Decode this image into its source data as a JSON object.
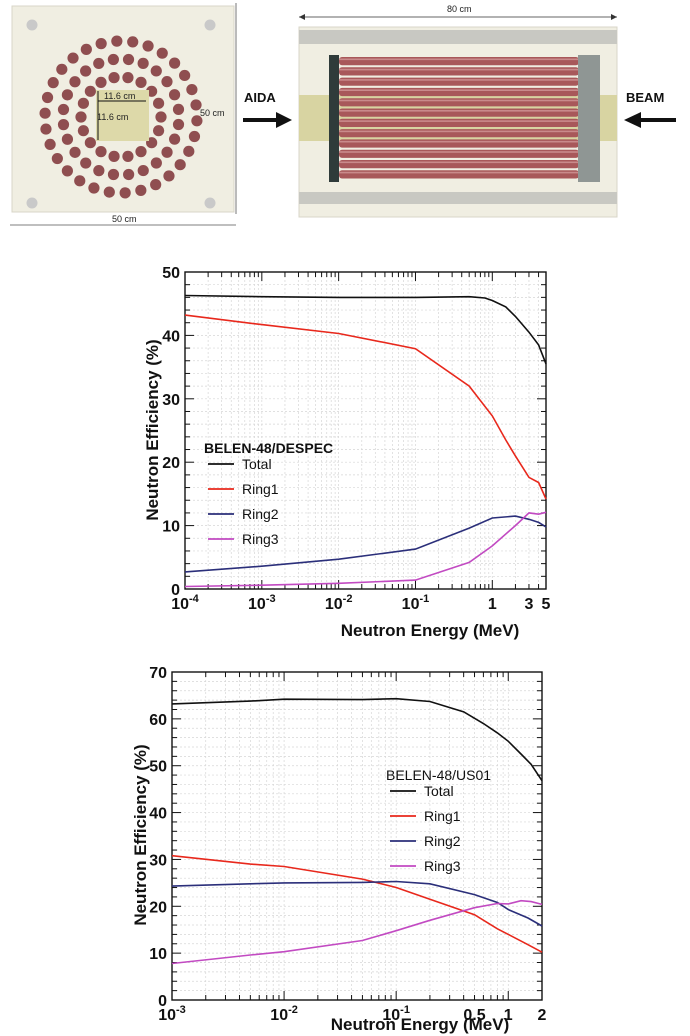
{
  "top_panel": {
    "left_square": {
      "inner_width": "11.6 cm",
      "inner_height": "11.6 cm",
      "outer_side": "50 cm",
      "outer_bottom": "50 cm"
    },
    "right_side": {
      "length": "80 cm",
      "left_arrow_label": "AIDA",
      "right_arrow_label": "BEAM"
    }
  },
  "chart_data": [
    {
      "type": "line",
      "xscale": "log",
      "xlim": [
        0.0001,
        5
      ],
      "ylim": [
        0,
        50
      ],
      "xlabel": "Neutron Energy (MeV)",
      "ylabel": "Neutron Efficiency (%)",
      "yticks": [
        0,
        10,
        20,
        30,
        40,
        50
      ],
      "xticks": [
        {
          "v": 0.0001,
          "base": "10",
          "exp": "-4"
        },
        {
          "v": 0.001,
          "base": "10",
          "exp": "-3"
        },
        {
          "v": 0.01,
          "base": "10",
          "exp": "-2"
        },
        {
          "v": 0.1,
          "base": "10",
          "exp": "-1"
        },
        {
          "v": 1,
          "base": "1",
          "exp": ""
        },
        {
          "v": 3,
          "base": "3",
          "exp": ""
        },
        {
          "v": 5,
          "base": "5",
          "exp": ""
        }
      ],
      "grid": true,
      "legend_title": "BELEN-48/DESPEC",
      "legend_position": "center-left",
      "series": [
        {
          "name": "Total",
          "color": "#111111",
          "x": [
            0.0001,
            0.001,
            0.01,
            0.1,
            0.5,
            0.8,
            1,
            1.5,
            2,
            3,
            4,
            5
          ],
          "y": [
            46.3,
            46.1,
            46.0,
            46.0,
            46.1,
            45.9,
            45.5,
            44.5,
            43.0,
            40.5,
            38.5,
            35.5
          ]
        },
        {
          "name": "Ring1",
          "color": "#e8281c",
          "x": [
            0.0001,
            0.001,
            0.01,
            0.1,
            0.5,
            1,
            1.5,
            2,
            3,
            4,
            5
          ],
          "y": [
            43.2,
            41.7,
            40.3,
            37.9,
            32.0,
            27.3,
            23.5,
            21.0,
            17.6,
            16.8,
            14.2
          ]
        },
        {
          "name": "Ring2",
          "color": "#2b2f7a",
          "x": [
            0.0001,
            0.001,
            0.01,
            0.1,
            0.5,
            1,
            2,
            3,
            4,
            5
          ],
          "y": [
            2.7,
            3.6,
            4.7,
            6.3,
            9.6,
            11.2,
            11.5,
            11.0,
            10.5,
            9.8
          ]
        },
        {
          "name": "Ring3",
          "color": "#c24ac2",
          "x": [
            0.0001,
            0.001,
            0.01,
            0.1,
            0.5,
            1,
            2,
            3,
            4,
            5
          ],
          "y": [
            0.4,
            0.6,
            0.9,
            1.4,
            4.2,
            6.8,
            10.0,
            12.0,
            11.8,
            12.1
          ]
        }
      ]
    },
    {
      "type": "line",
      "xscale": "log",
      "xlim": [
        0.001,
        2
      ],
      "ylim": [
        0,
        70
      ],
      "xlabel": "Neutron Energy (MeV)",
      "ylabel": "Neutron Efficiency (%)",
      "yticks": [
        0,
        10,
        20,
        30,
        40,
        50,
        60,
        70
      ],
      "xticks": [
        {
          "v": 0.001,
          "base": "10",
          "exp": "-3"
        },
        {
          "v": 0.01,
          "base": "10",
          "exp": "-2"
        },
        {
          "v": 0.1,
          "base": "10",
          "exp": "-1"
        },
        {
          "v": 0.5,
          "base": "0.5",
          "exp": ""
        },
        {
          "v": 1,
          "base": "1",
          "exp": ""
        },
        {
          "v": 2,
          "base": "2",
          "exp": ""
        }
      ],
      "grid": true,
      "legend_title": "BELEN-48/US01",
      "legend_position": "right",
      "series": [
        {
          "name": "Total",
          "color": "#111111",
          "x": [
            0.001,
            0.005,
            0.01,
            0.05,
            0.1,
            0.2,
            0.4,
            0.6,
            0.8,
            1,
            1.3,
            1.6,
            2
          ],
          "y": [
            63.2,
            63.8,
            64.2,
            64.1,
            64.3,
            63.7,
            61.5,
            59.0,
            57.0,
            55.2,
            52.5,
            50.3,
            46.8
          ]
        },
        {
          "name": "Ring1",
          "color": "#e8281c",
          "x": [
            0.001,
            0.005,
            0.01,
            0.05,
            0.1,
            0.2,
            0.5,
            0.8,
            1,
            1.5,
            2
          ],
          "y": [
            30.8,
            29.0,
            28.5,
            25.8,
            24.0,
            21.5,
            18.2,
            15.2,
            14.0,
            11.8,
            10.2
          ]
        },
        {
          "name": "Ring2",
          "color": "#2b2f7a",
          "x": [
            0.001,
            0.005,
            0.01,
            0.05,
            0.1,
            0.2,
            0.5,
            0.8,
            1,
            1.5,
            2
          ],
          "y": [
            24.3,
            24.8,
            25.0,
            25.1,
            25.3,
            24.8,
            22.5,
            20.8,
            19.3,
            17.5,
            15.8
          ]
        },
        {
          "name": "Ring3",
          "color": "#c24ac2",
          "x": [
            0.001,
            0.005,
            0.01,
            0.05,
            0.1,
            0.2,
            0.5,
            0.8,
            1,
            1.3,
            1.6,
            2
          ],
          "y": [
            7.8,
            9.6,
            10.3,
            12.7,
            14.8,
            17.0,
            19.7,
            20.6,
            20.5,
            21.2,
            21.0,
            20.4
          ]
        }
      ]
    }
  ]
}
